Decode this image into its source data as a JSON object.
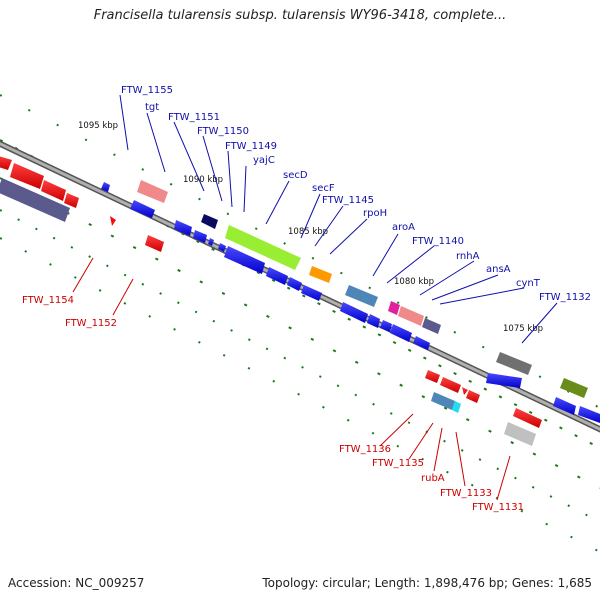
{
  "title": "Francisella tularensis subsp. tularensis WY96-3418, complete...",
  "footer": {
    "accession": "Accession: NC_009257",
    "topology": "Topology: circular; Length: 1,898,476 bp; Genes: 1,685"
  },
  "colors": {
    "backbone": "#8f8f8f",
    "forward_gene": "#1010ee",
    "reverse_gene": "#ee1010",
    "label_forward": "#1010aa",
    "label_reverse": "#cc0000",
    "gc_dash": "#1a7a1a",
    "orf_dark_navy": "#0a0a60",
    "orf_slate": "#5a5a8c",
    "orf_pink": "#f08a8a",
    "orf_lime": "#99ee33",
    "orf_orange": "#ff9900",
    "orf_steel": "#4f86b8",
    "orf_magenta": "#e0209c",
    "orf_grey": "#707070",
    "orf_olive": "#6a8c1a",
    "orf_lightgrey": "#c0c0c0"
  },
  "kbp_markers": [
    "1095 kbp",
    "1090 kbp",
    "1085 kbp",
    "1080 kbp",
    "1075 kbp"
  ],
  "labels_top": [
    "FTW_1155",
    "tgt",
    "FTW_1151",
    "FTW_1150",
    "FTW_1149",
    "yajC",
    "secD",
    "secF",
    "FTW_1145",
    "rpoH",
    "aroA",
    "FTW_1140",
    "rnhA",
    "ansA",
    "cynT",
    "FTW_1132"
  ],
  "labels_bottom": [
    "FTW_1154",
    "FTW_1152",
    "FTW_1136",
    "FTW_1135",
    "rubA",
    "FTW_1133",
    "FTW_1131"
  ]
}
